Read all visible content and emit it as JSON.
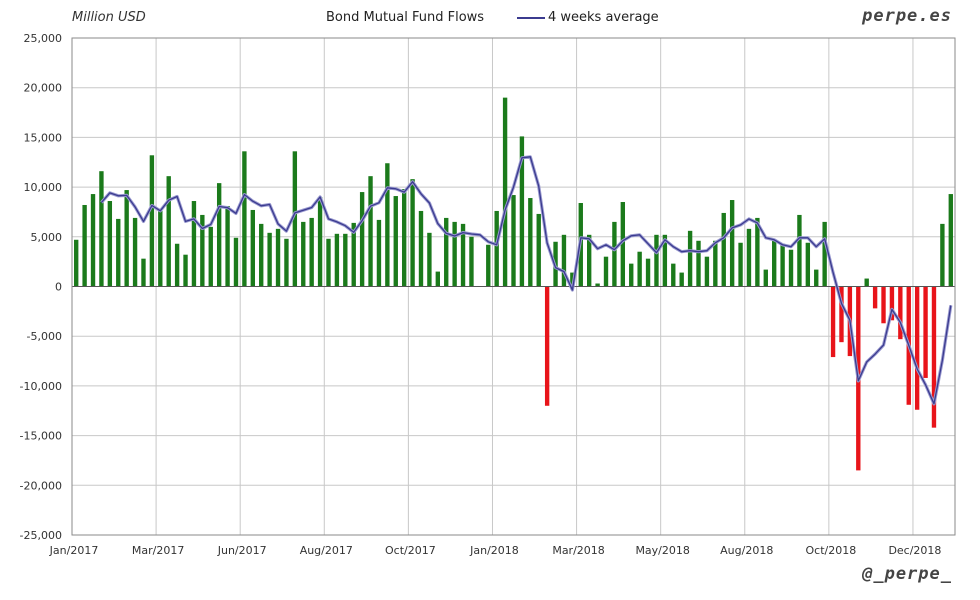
{
  "header": {
    "unit_label": "Million USD",
    "title": "Bond Mutual Fund Flows",
    "legend_label": "4 weeks average",
    "brand_top": "perpe.es",
    "brand_bottom": "@_perpe_"
  },
  "colors": {
    "positive_bar": "#1b7a1b",
    "negative_bar": "#e8141a",
    "average_line": "#3b3b8f",
    "grid": "#c8c8c8",
    "axis": "#555555"
  },
  "chart_data": {
    "type": "bar",
    "title": "Bond Mutual Fund Flows",
    "ylabel": "Million USD",
    "xlabel": "",
    "ylim": [
      -25000,
      25000
    ],
    "grid": true,
    "legend_position": "top-center",
    "y_ticks": [
      "25,000",
      "20,000",
      "15,000",
      "10,000",
      "5,000",
      "0",
      "-5,000",
      "-10,000",
      "-15,000",
      "-20,000",
      "-25,000"
    ],
    "y_tick_values": [
      25000,
      20000,
      15000,
      10000,
      5000,
      0,
      -5000,
      -10000,
      -15000,
      -20000,
      -25000
    ],
    "x_ticks": [
      {
        "label": "Jan/2017",
        "week": 0
      },
      {
        "label": "Mar/2017",
        "week": 10
      },
      {
        "label": "Jun/2017",
        "week": 20
      },
      {
        "label": "Aug/2017",
        "week": 30
      },
      {
        "label": "Oct/2017",
        "week": 40
      },
      {
        "label": "Jan/2018",
        "week": 50
      },
      {
        "label": "Mar/2018",
        "week": 60
      },
      {
        "label": "May/2018",
        "week": 70
      },
      {
        "label": "Aug/2018",
        "week": 80
      },
      {
        "label": "Oct/2018",
        "week": 90
      },
      {
        "label": "Dec/2018",
        "week": 100
      }
    ],
    "series": [
      {
        "name": "Bond Mutual Fund Flows",
        "values": [
          4700,
          8200,
          9300,
          11600,
          8600,
          6800,
          9700,
          6900,
          2800,
          13200,
          7600,
          11100,
          4300,
          3200,
          8600,
          7200,
          6000,
          10400,
          8100,
          4900,
          13600,
          7700,
          6300,
          5400,
          5800,
          4800,
          13600,
          6500,
          6900,
          9000,
          4800,
          5300,
          5300,
          6400,
          9500,
          11100,
          6700,
          12400,
          9100,
          9800,
          10800,
          7600,
          5400,
          1500,
          6900,
          6500,
          6300,
          5000,
          0,
          4200,
          7600,
          19000,
          9200,
          15100,
          8900,
          7300,
          -12000,
          4500,
          5200,
          1400,
          8400,
          5200,
          300,
          3000,
          6500,
          8500,
          2300,
          3500,
          2800,
          5200,
          5200,
          2300,
          1400,
          5600,
          4600,
          3000,
          4600,
          7400,
          8700,
          4400,
          5800,
          6900,
          1700,
          4700,
          4300,
          3700,
          7200,
          4400,
          1700,
          6500,
          -7100,
          -5600,
          -7000,
          -18500,
          800,
          -2200,
          -3700,
          -3400,
          -5300,
          -11900,
          -12400,
          -9200,
          -14200,
          6300,
          9300
        ]
      },
      {
        "name": "4 weeks average",
        "values": [
          null,
          null,
          null,
          8450,
          9420,
          9120,
          9170,
          8000,
          6550,
          8150,
          7620,
          8680,
          9050,
          6550,
          6800,
          5830,
          6250,
          8050,
          7930,
          7350,
          9250,
          8580,
          8120,
          8250,
          6300,
          5570,
          7400,
          7680,
          7950,
          9000,
          6800,
          6500,
          6120,
          5450,
          6630,
          8080,
          8420,
          9930,
          9830,
          9500,
          10530,
          9330,
          8400,
          6330,
          5350,
          5080,
          5420,
          5280,
          5200,
          4500,
          4200,
          7700,
          10000,
          12950,
          13050,
          10100,
          4400,
          1900,
          1500,
          -350,
          4900,
          4800,
          3800,
          4200,
          3700,
          4600,
          5100,
          5200,
          4300,
          3400,
          4700,
          4000,
          3500,
          3600,
          3500,
          3600,
          4400,
          4900,
          5900,
          6200,
          6800,
          6400,
          4900,
          4700,
          4200,
          4000,
          4900,
          4900,
          4000,
          4800,
          1400,
          -1700,
          -3400,
          -9500,
          -7600,
          -6800,
          -5900,
          -2300,
          -3600,
          -5900,
          -8300,
          -9900,
          -11800,
          -7400,
          -1900
        ]
      }
    ]
  }
}
